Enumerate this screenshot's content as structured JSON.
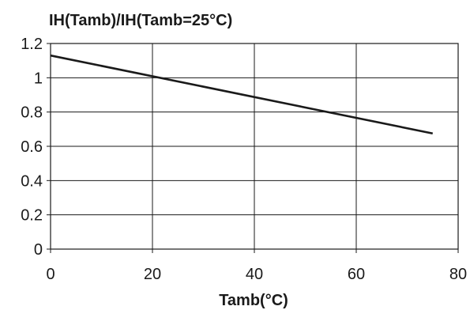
{
  "chart_data": {
    "type": "line",
    "ylabel": "IH(Tamb)/IH(Tamb=25°C)",
    "xlabel": "Tamb(°C)",
    "xlim": [
      0,
      80
    ],
    "ylim": [
      0,
      1.2
    ],
    "x_ticks": [
      "0",
      "20",
      "40",
      "60",
      "80"
    ],
    "y_ticks": [
      "0",
      "0.2",
      "0.4",
      "0.6",
      "0.8",
      "1",
      "1.2"
    ],
    "grid": true,
    "line_color": "#1a1a1a",
    "series": [
      {
        "x": [
          0,
          75
        ],
        "y": [
          1.13,
          0.675
        ]
      }
    ]
  }
}
